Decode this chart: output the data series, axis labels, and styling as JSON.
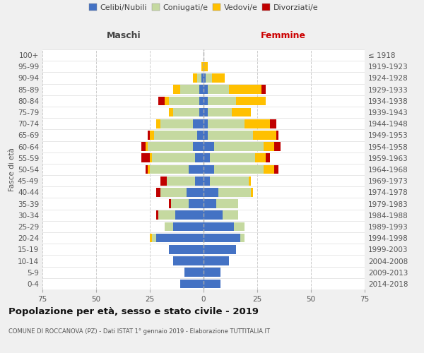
{
  "age_groups": [
    "0-4",
    "5-9",
    "10-14",
    "15-19",
    "20-24",
    "25-29",
    "30-34",
    "35-39",
    "40-44",
    "45-49",
    "50-54",
    "55-59",
    "60-64",
    "65-69",
    "70-74",
    "75-79",
    "80-84",
    "85-89",
    "90-94",
    "95-99",
    "100+"
  ],
  "birth_years": [
    "2014-2018",
    "2009-2013",
    "2004-2008",
    "1999-2003",
    "1994-1998",
    "1989-1993",
    "1984-1988",
    "1979-1983",
    "1974-1978",
    "1969-1973",
    "1964-1968",
    "1959-1963",
    "1954-1958",
    "1949-1953",
    "1944-1948",
    "1939-1943",
    "1934-1938",
    "1929-1933",
    "1924-1928",
    "1919-1923",
    "≤ 1918"
  ],
  "colors": {
    "celibi": "#4472c4",
    "coniugati": "#c5d9a0",
    "vedovi": "#ffc000",
    "divorziati": "#c00000"
  },
  "male": {
    "celibi": [
      11,
      9,
      14,
      16,
      22,
      14,
      13,
      7,
      8,
      4,
      7,
      4,
      5,
      3,
      5,
      2,
      2,
      2,
      1,
      0,
      0
    ],
    "coniugati": [
      0,
      0,
      0,
      0,
      2,
      4,
      8,
      8,
      12,
      13,
      18,
      20,
      21,
      20,
      15,
      12,
      14,
      9,
      2,
      0,
      0
    ],
    "vedovi": [
      0,
      0,
      0,
      0,
      1,
      0,
      0,
      0,
      0,
      0,
      1,
      1,
      1,
      2,
      2,
      2,
      2,
      3,
      2,
      1,
      0
    ],
    "divorziati": [
      0,
      0,
      0,
      0,
      0,
      0,
      1,
      1,
      2,
      3,
      1,
      4,
      2,
      1,
      0,
      0,
      3,
      0,
      0,
      0,
      0
    ]
  },
  "female": {
    "celibi": [
      8,
      8,
      12,
      15,
      17,
      14,
      9,
      6,
      7,
      3,
      5,
      3,
      5,
      2,
      2,
      2,
      2,
      2,
      1,
      0,
      0
    ],
    "coniugati": [
      0,
      0,
      0,
      0,
      2,
      5,
      7,
      10,
      15,
      18,
      23,
      21,
      23,
      21,
      17,
      11,
      13,
      10,
      3,
      0,
      0
    ],
    "vedovi": [
      0,
      0,
      0,
      0,
      0,
      0,
      0,
      0,
      1,
      1,
      5,
      5,
      5,
      11,
      12,
      9,
      14,
      15,
      6,
      2,
      0
    ],
    "divorziati": [
      0,
      0,
      0,
      0,
      0,
      0,
      0,
      0,
      0,
      0,
      2,
      2,
      3,
      1,
      3,
      0,
      0,
      2,
      0,
      0,
      0
    ]
  },
  "xlim": 75,
  "title": "Popolazione per età, sesso e stato civile - 2019",
  "subtitle": "COMUNE DI ROCCANOVA (PZ) - Dati ISTAT 1° gennaio 2019 - Elaborazione TUTTITALIA.IT",
  "ylabel": "Fasce di età",
  "legend_labels": [
    "Celibi/Nubili",
    "Coniugati/e",
    "Vedovi/e",
    "Divorziati/e"
  ],
  "maschi_label": "Maschi",
  "femmine_label": "Femmine",
  "background_color": "#f0f0f0",
  "plot_bg_color": "#ffffff"
}
